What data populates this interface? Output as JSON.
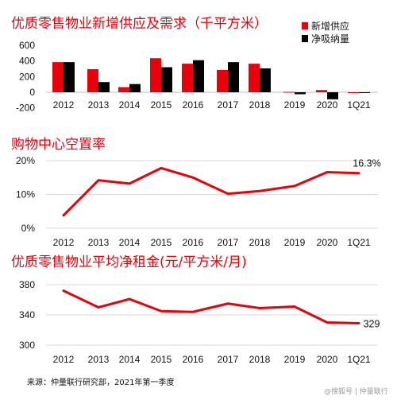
{
  "colors": {
    "accent": "#e8000b",
    "series_dark": "#000000",
    "line": "#e8000b",
    "grid": "#d9d9d9"
  },
  "chart_data": [
    {
      "type": "bar",
      "title": "优质零售物业新增供应及需求（千平方米）",
      "categories": [
        "2012",
        "2013",
        "2014",
        "2015",
        "2016",
        "2017",
        "2018",
        "2019",
        "2020",
        "1Q21"
      ],
      "ylim": [
        -120,
        600
      ],
      "yticks": [
        600,
        400,
        200,
        0,
        -200
      ],
      "ytick_labels": [
        "600",
        "400",
        "200",
        "0",
        "-200"
      ],
      "legend_position": "top-right",
      "series": [
        {
          "name": "新增供应",
          "color": "#e8000b",
          "values": [
            385,
            295,
            65,
            435,
            365,
            285,
            365,
            5,
            28,
            -10
          ]
        },
        {
          "name": "净吸纳量",
          "color": "#000000",
          "values": [
            385,
            130,
            105,
            320,
            410,
            385,
            305,
            -25,
            -90,
            -5
          ]
        }
      ]
    },
    {
      "type": "line",
      "title": "购物中心空置率",
      "categories": [
        "2012",
        "2013",
        "2014",
        "2015",
        "2016",
        "2017",
        "2018",
        "2019",
        "2020",
        "1Q21"
      ],
      "ylim": [
        0,
        20
      ],
      "yticks": [
        0,
        10,
        20
      ],
      "ytick_labels": [
        "0%",
        "10%",
        "20%"
      ],
      "series": [
        {
          "color": "#e8000b",
          "values": [
            3.8,
            14.2,
            13.2,
            17.8,
            15.0,
            10.2,
            11.0,
            12.5,
            16.6,
            16.3
          ]
        }
      ],
      "end_label": "16.3%"
    },
    {
      "type": "line",
      "title": "优质零售物业平均净租金(元/平方米/月)",
      "categories": [
        "2012",
        "2013",
        "2014",
        "2015",
        "2016",
        "2017",
        "2018",
        "2019",
        "2020",
        "1Q21"
      ],
      "ylim": [
        300,
        380
      ],
      "yticks": [
        300,
        340,
        380
      ],
      "ytick_labels": [
        "300",
        "340",
        "380"
      ],
      "series": [
        {
          "color": "#e8000b",
          "values": [
            372,
            350,
            361,
            345,
            344,
            355,
            349,
            351,
            330,
            329
          ]
        }
      ],
      "end_label": "329"
    }
  ],
  "footer": {
    "source": "来源：仲量联行研究部，2021年第一季度",
    "watermark": "@搜狐号 | 仲量联行"
  }
}
